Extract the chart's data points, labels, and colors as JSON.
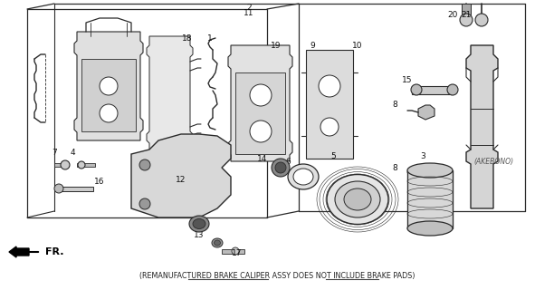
{
  "background_color": "#f5f5f5",
  "line_color": "#2a2a2a",
  "bottom_text": "(REMANUFACTURED BRAKE CALIPER ASSY DOES NOT INCLUDE BRAKE PADS)",
  "akebono_text": "(AKEBONO)",
  "fr_text": "FR.",
  "fig_width": 6.12,
  "fig_height": 3.2,
  "dpi": 100
}
